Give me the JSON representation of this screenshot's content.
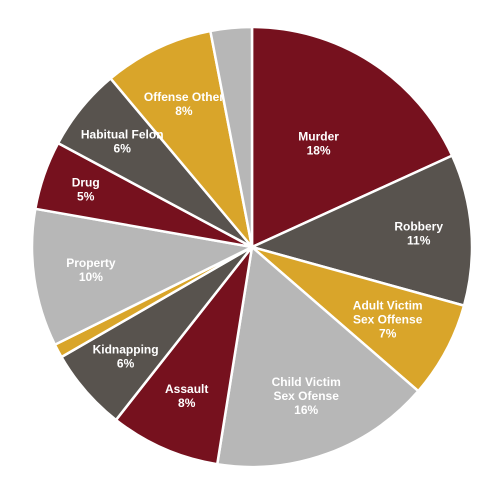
{
  "chart_data": {
    "type": "pie",
    "title": "",
    "start": "top, clockwise",
    "slices": [
      {
        "label": "Murder",
        "value_label": "18%",
        "value": 18,
        "color": "#76111e",
        "text_color": "#ffffff"
      },
      {
        "label": "Robbery",
        "value_label": "11%",
        "value": 11,
        "color": "#58534e",
        "text_color": "#ffffff"
      },
      {
        "label": "Adult Victim\nSex Offense",
        "value_label": "7%",
        "value": 7,
        "color": "#d9a52a",
        "text_color": "#ffffff"
      },
      {
        "label": "Child Victim\nSex Ofense",
        "value_label": "16%",
        "value": 16,
        "color": "#b7b7b7",
        "text_color": "#ffffff"
      },
      {
        "label": "Assault",
        "value_label": "8%",
        "value": 8,
        "color": "#76111e",
        "text_color": "#ffffff"
      },
      {
        "label": "Kidnapping",
        "value_label": "6%",
        "value": 6,
        "color": "#58534e",
        "text_color": "#ffffff"
      },
      {
        "label": "",
        "value_label": "",
        "value": 1,
        "color": "#d9a52a",
        "text_color": "#ffffff"
      },
      {
        "label": "Property",
        "value_label": "10%",
        "value": 10,
        "color": "#b7b7b7",
        "text_color": "#ffffff"
      },
      {
        "label": "Drug",
        "value_label": "5%",
        "value": 5,
        "color": "#76111e",
        "text_color": "#ffffff"
      },
      {
        "label": "Habitual Felon",
        "value_label": "6%",
        "value": 6,
        "color": "#58534e",
        "text_color": "#ffffff"
      },
      {
        "label": "Offense Other",
        "value_label": "8%",
        "value": 8,
        "color": "#d9a52a",
        "text_color": "#ffffff"
      },
      {
        "label": "",
        "value_label": "",
        "value": 3,
        "color": "#b7b7b7",
        "text_color": "#ffffff"
      }
    ]
  }
}
